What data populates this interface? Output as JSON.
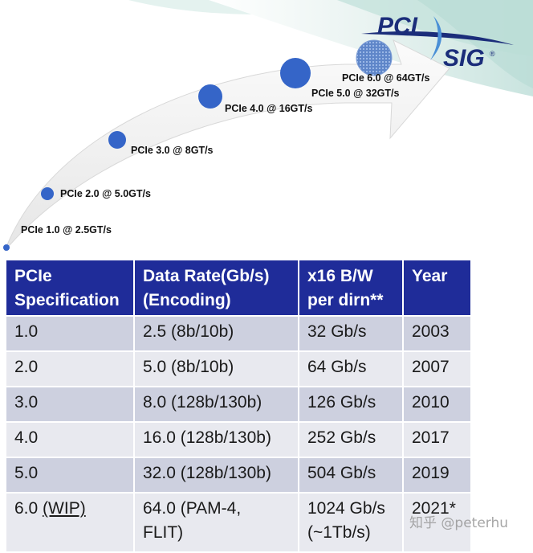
{
  "logo": {
    "line1": "PCI",
    "line2": "SIG",
    "mark": "®"
  },
  "colors": {
    "header_bg": "#1f2c99",
    "row_odd": "#cdd0df",
    "row_even": "#e8e9ef",
    "dot": "#3565c8",
    "arrow": "#f2f2f2"
  },
  "generations": [
    {
      "label": "PCIe 1.0 @ 2.5GT/s",
      "size_rank": 1
    },
    {
      "label": "PCIe 2.0 @ 5.0GT/s",
      "size_rank": 2
    },
    {
      "label": "PCIe 3.0 @ 8GT/s",
      "size_rank": 3
    },
    {
      "label": "PCIe 4.0 @ 16GT/s",
      "size_rank": 4
    },
    {
      "label": "PCIe 5.0 @ 32GT/s",
      "size_rank": 5
    },
    {
      "label": "PCIe 6.0 @ 64GT/s",
      "size_rank": 6
    }
  ],
  "table": {
    "headers": [
      {
        "line1": "PCIe",
        "line2": "Specification"
      },
      {
        "line1": "Data Rate(Gb/s)",
        "line2": "(Encoding)"
      },
      {
        "line1": "x16 B/W",
        "line2": "per dirn**"
      },
      {
        "line1": "Year",
        "line2": ""
      }
    ],
    "rows": [
      {
        "spec": "1.0",
        "spec_note": "",
        "rate": "2.5 (8b/10b)",
        "rate2": "",
        "bw": "32 Gb/s",
        "bw2": "",
        "year": "2003"
      },
      {
        "spec": "2.0",
        "spec_note": "",
        "rate": "5.0 (8b/10b)",
        "rate2": "",
        "bw": "64 Gb/s",
        "bw2": "",
        "year": "2007"
      },
      {
        "spec": "3.0",
        "spec_note": "",
        "rate": "8.0 (128b/130b)",
        "rate2": "",
        "bw": "126 Gb/s",
        "bw2": "",
        "year": "2010"
      },
      {
        "spec": "4.0",
        "spec_note": "",
        "rate": "16.0 (128b/130b)",
        "rate2": "",
        "bw": "252 Gb/s",
        "bw2": "",
        "year": "2017"
      },
      {
        "spec": "5.0",
        "spec_note": "",
        "rate": "32.0 (128b/130b)",
        "rate2": "",
        "bw": "504 Gb/s",
        "bw2": "",
        "year": "2019"
      },
      {
        "spec": "6.0",
        "spec_note": "(WIP)",
        "rate": "64.0 (PAM-4,",
        "rate2": "FLIT)",
        "bw": "1024 Gb/s",
        "bw2": "(~1Tb/s)",
        "year": "2021*"
      }
    ]
  },
  "watermark": "知乎 @peterhu"
}
